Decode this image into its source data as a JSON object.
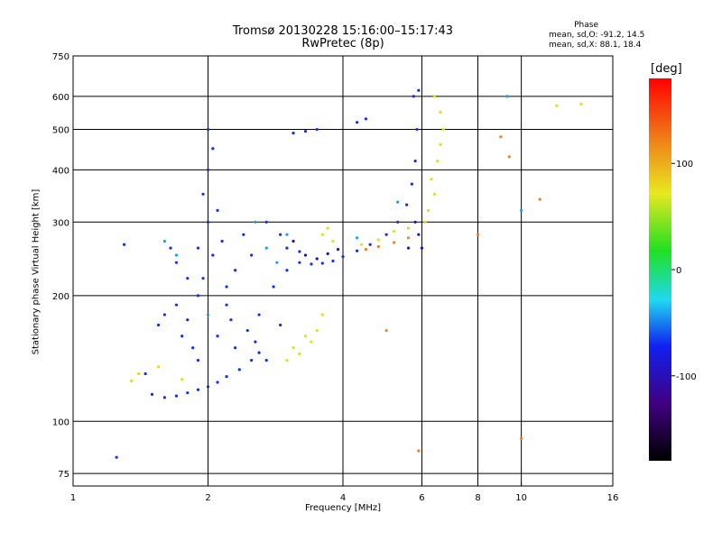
{
  "chart_data": {
    "type": "scatter",
    "title": "Tromsø 20130228 15:16:00–15:17:43",
    "subtitle": "RwPretec (8p)",
    "xlabel": "Frequency [MHz]",
    "ylabel": "Stationary phase Virtual Height [km]",
    "x_scale": "log2",
    "y_scale": "log",
    "xlim": [
      1,
      16
    ],
    "ylim": [
      70,
      750
    ],
    "x_ticks": [
      1,
      2,
      4,
      6,
      8,
      10,
      16
    ],
    "x_tick_labels": [
      "1",
      "2",
      "4",
      "6",
      "8",
      "10",
      "16"
    ],
    "y_ticks": [
      75,
      100,
      200,
      300,
      400,
      500,
      600,
      750
    ],
    "y_tick_labels": [
      "75",
      "100",
      "200",
      "300",
      "400",
      "500",
      "600",
      "750"
    ],
    "grid": true,
    "stats": {
      "title": "Phase",
      "line1": "mean, sd,O:  -91.2, 14.5",
      "line2": "mean, sd,X:   88.1, 18.4"
    },
    "colorbar": {
      "label": "[deg]",
      "range": [
        -180,
        180
      ],
      "ticks": [
        100,
        0,
        -100
      ],
      "tick_labels": [
        "100",
        "0",
        "-100"
      ]
    },
    "series": [
      {
        "phase": -100,
        "color": "#1030e0",
        "points": [
          [
            1.5,
            116
          ],
          [
            1.6,
            114
          ],
          [
            1.7,
            115
          ],
          [
            1.8,
            117
          ],
          [
            1.9,
            119
          ],
          [
            2.0,
            121
          ],
          [
            2.1,
            124
          ],
          [
            2.2,
            128
          ],
          [
            2.35,
            133
          ],
          [
            2.5,
            140
          ],
          [
            2.6,
            146
          ],
          [
            1.55,
            170
          ],
          [
            1.6,
            180
          ],
          [
            1.7,
            190
          ],
          [
            1.75,
            160
          ],
          [
            1.8,
            175
          ],
          [
            1.9,
            200
          ],
          [
            1.95,
            220
          ],
          [
            2.0,
            300
          ],
          [
            2.0,
            400
          ],
          [
            2.0,
            500
          ],
          [
            1.95,
            350
          ],
          [
            1.9,
            260
          ],
          [
            2.05,
            250
          ],
          [
            2.05,
            450
          ],
          [
            2.1,
            320
          ],
          [
            2.15,
            270
          ],
          [
            2.2,
            210
          ],
          [
            2.3,
            230
          ],
          [
            2.4,
            280
          ],
          [
            2.5,
            250
          ],
          [
            2.6,
            180
          ],
          [
            2.7,
            300
          ],
          [
            2.8,
            210
          ],
          [
            2.9,
            170
          ],
          [
            3.0,
            230
          ],
          [
            3.2,
            240
          ],
          [
            3.4,
            238
          ],
          [
            3.6,
            239
          ],
          [
            3.8,
            242
          ],
          [
            4.0,
            248
          ],
          [
            4.3,
            256
          ],
          [
            4.6,
            265
          ],
          [
            5.0,
            280
          ],
          [
            5.3,
            300
          ],
          [
            5.55,
            330
          ],
          [
            5.7,
            370
          ],
          [
            5.8,
            420
          ],
          [
            5.85,
            500
          ],
          [
            5.75,
            600
          ],
          [
            1.65,
            260
          ],
          [
            1.7,
            240
          ],
          [
            1.8,
            220
          ],
          [
            1.85,
            150
          ],
          [
            1.9,
            140
          ],
          [
            2.1,
            160
          ],
          [
            2.2,
            190
          ],
          [
            2.25,
            175
          ],
          [
            2.3,
            150
          ],
          [
            2.45,
            165
          ],
          [
            2.55,
            155
          ],
          [
            2.7,
            140
          ],
          [
            3.1,
            490
          ],
          [
            3.3,
            495
          ],
          [
            3.5,
            500
          ],
          [
            3.0,
            260
          ],
          [
            3.2,
            255
          ],
          [
            2.9,
            280
          ],
          [
            1.3,
            265
          ],
          [
            1.25,
            82
          ],
          [
            1.45,
            130
          ],
          [
            4.3,
            520
          ],
          [
            4.5,
            530
          ],
          [
            5.9,
            620
          ]
        ]
      },
      {
        "phase": -140,
        "color": "#2010b0",
        "points": [
          [
            3.3,
            250
          ],
          [
            3.5,
            245
          ],
          [
            3.7,
            252
          ],
          [
            3.9,
            258
          ],
          [
            5.6,
            260
          ],
          [
            5.8,
            300
          ],
          [
            3.1,
            270
          ],
          [
            5.9,
            280
          ],
          [
            6.0,
            260
          ]
        ]
      },
      {
        "phase": -70,
        "color": "#18a0e8",
        "points": [
          [
            2.7,
            260
          ],
          [
            2.85,
            240
          ],
          [
            3.0,
            280
          ],
          [
            1.6,
            270
          ],
          [
            1.7,
            250
          ],
          [
            2.55,
            300
          ],
          [
            4.3,
            275
          ],
          [
            5.3,
            335
          ],
          [
            2.0,
            180
          ],
          [
            9.3,
            600
          ],
          [
            10.0,
            320
          ]
        ]
      },
      {
        "phase": 80,
        "color": "#d8e020",
        "points": [
          [
            3.0,
            140
          ],
          [
            3.1,
            150
          ],
          [
            3.2,
            145
          ],
          [
            3.3,
            160
          ],
          [
            3.4,
            155
          ],
          [
            3.5,
            165
          ],
          [
            3.6,
            280
          ],
          [
            3.7,
            290
          ],
          [
            3.8,
            270
          ],
          [
            3.6,
            180
          ],
          [
            4.4,
            265
          ],
          [
            4.8,
            272
          ],
          [
            5.2,
            285
          ],
          [
            5.6,
            290
          ],
          [
            6.3,
            380
          ],
          [
            6.5,
            420
          ],
          [
            6.6,
            460
          ],
          [
            6.7,
            500
          ],
          [
            6.4,
            350
          ],
          [
            6.2,
            320
          ],
          [
            6.1,
            300
          ],
          [
            6.4,
            600
          ],
          [
            1.35,
            125
          ],
          [
            1.4,
            130
          ],
          [
            1.55,
            135
          ],
          [
            1.75,
            126
          ],
          [
            6.6,
            550
          ],
          [
            12.0,
            570
          ],
          [
            13.6,
            575
          ]
        ]
      },
      {
        "phase": 150,
        "color": "#f08020",
        "points": [
          [
            4.5,
            258
          ],
          [
            4.8,
            262
          ],
          [
            5.2,
            268
          ],
          [
            5.6,
            275
          ],
          [
            9.0,
            480
          ],
          [
            10.0,
            91
          ],
          [
            9.4,
            430
          ],
          [
            11.0,
            340
          ],
          [
            5.0,
            165
          ],
          [
            5.9,
            85
          ],
          [
            8.0,
            280
          ]
        ]
      }
    ]
  }
}
